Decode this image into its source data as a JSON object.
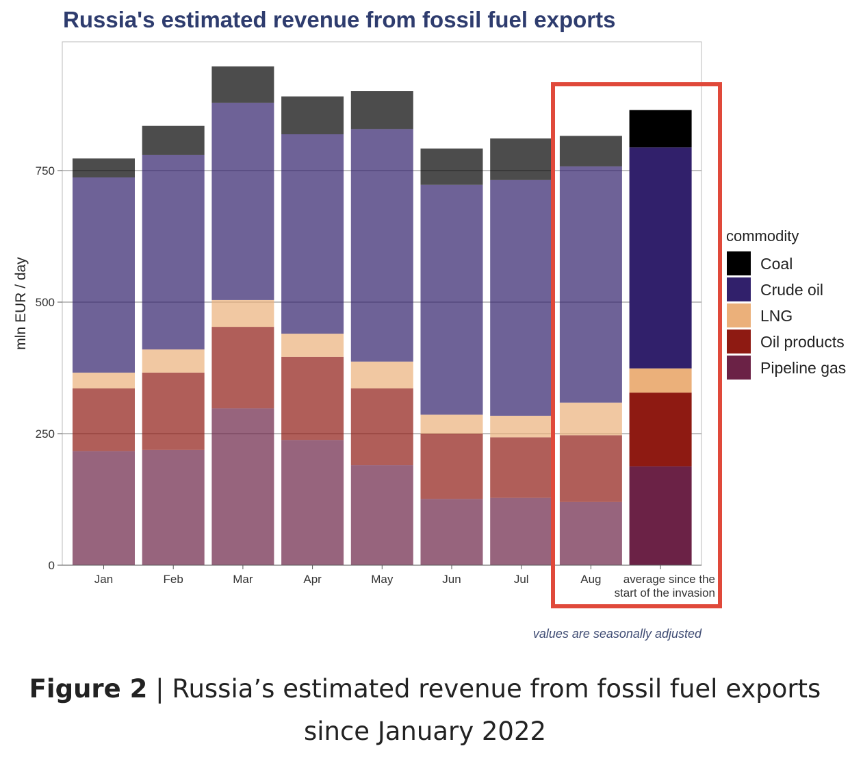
{
  "chart_data": {
    "type": "bar",
    "stacked": true,
    "title": "Russia's estimated revenue from fossil fuel exports",
    "xlabel": "",
    "ylabel": "mln EUR / day",
    "ylim": [
      0,
      995
    ],
    "yticks": [
      0,
      250,
      500,
      750
    ],
    "grid": true,
    "categories": [
      "Jan",
      "Feb",
      "Mar",
      "Apr",
      "May",
      "Jun",
      "Jul",
      "Aug",
      "average since the start of the invasion"
    ],
    "category_lines": [
      [
        "Jan"
      ],
      [
        "Feb"
      ],
      [
        "Mar"
      ],
      [
        "Apr"
      ],
      [
        "May"
      ],
      [
        "Jun"
      ],
      [
        "Jul"
      ],
      [
        "Aug"
      ],
      [
        "average since the",
        "start of the invasion"
      ]
    ],
    "series": [
      {
        "name": "Pipeline gas",
        "color": "#6b2246",
        "values": [
          217,
          219,
          298,
          238,
          190,
          126,
          128,
          120,
          188
        ]
      },
      {
        "name": "Oil products",
        "color": "#8e1a12",
        "values": [
          119,
          147,
          155,
          158,
          146,
          124,
          115,
          127,
          140
        ]
      },
      {
        "name": "LNG",
        "color": "#ebb07a",
        "values": [
          30,
          44,
          51,
          44,
          51,
          36,
          41,
          62,
          46
        ]
      },
      {
        "name": "Crude oil",
        "color": "#31206b",
        "values": [
          371,
          370,
          375,
          379,
          442,
          437,
          448,
          449,
          420
        ]
      },
      {
        "name": "Coal",
        "color": "#000000",
        "values": [
          36,
          55,
          69,
          72,
          72,
          69,
          79,
          58,
          71
        ]
      }
    ],
    "legend": {
      "title": "commodity",
      "placement": "right",
      "order": [
        "Coal",
        "Crude oil",
        "LNG",
        "Oil products",
        "Pipeline gas"
      ]
    },
    "highlighted_categories": [
      "Aug",
      "average since the start of the invasion"
    ],
    "highlight_color": "#e0493a",
    "faded_categories": [
      "Jan",
      "Feb",
      "Mar",
      "Apr",
      "May",
      "Jun",
      "Jul",
      "Aug"
    ],
    "annotation": "values are seasonally adjusted"
  },
  "caption": {
    "label": "Figure 2",
    "separator": " | ",
    "text": "Russia’s estimated revenue from fossil fuel exports since January 2022"
  }
}
